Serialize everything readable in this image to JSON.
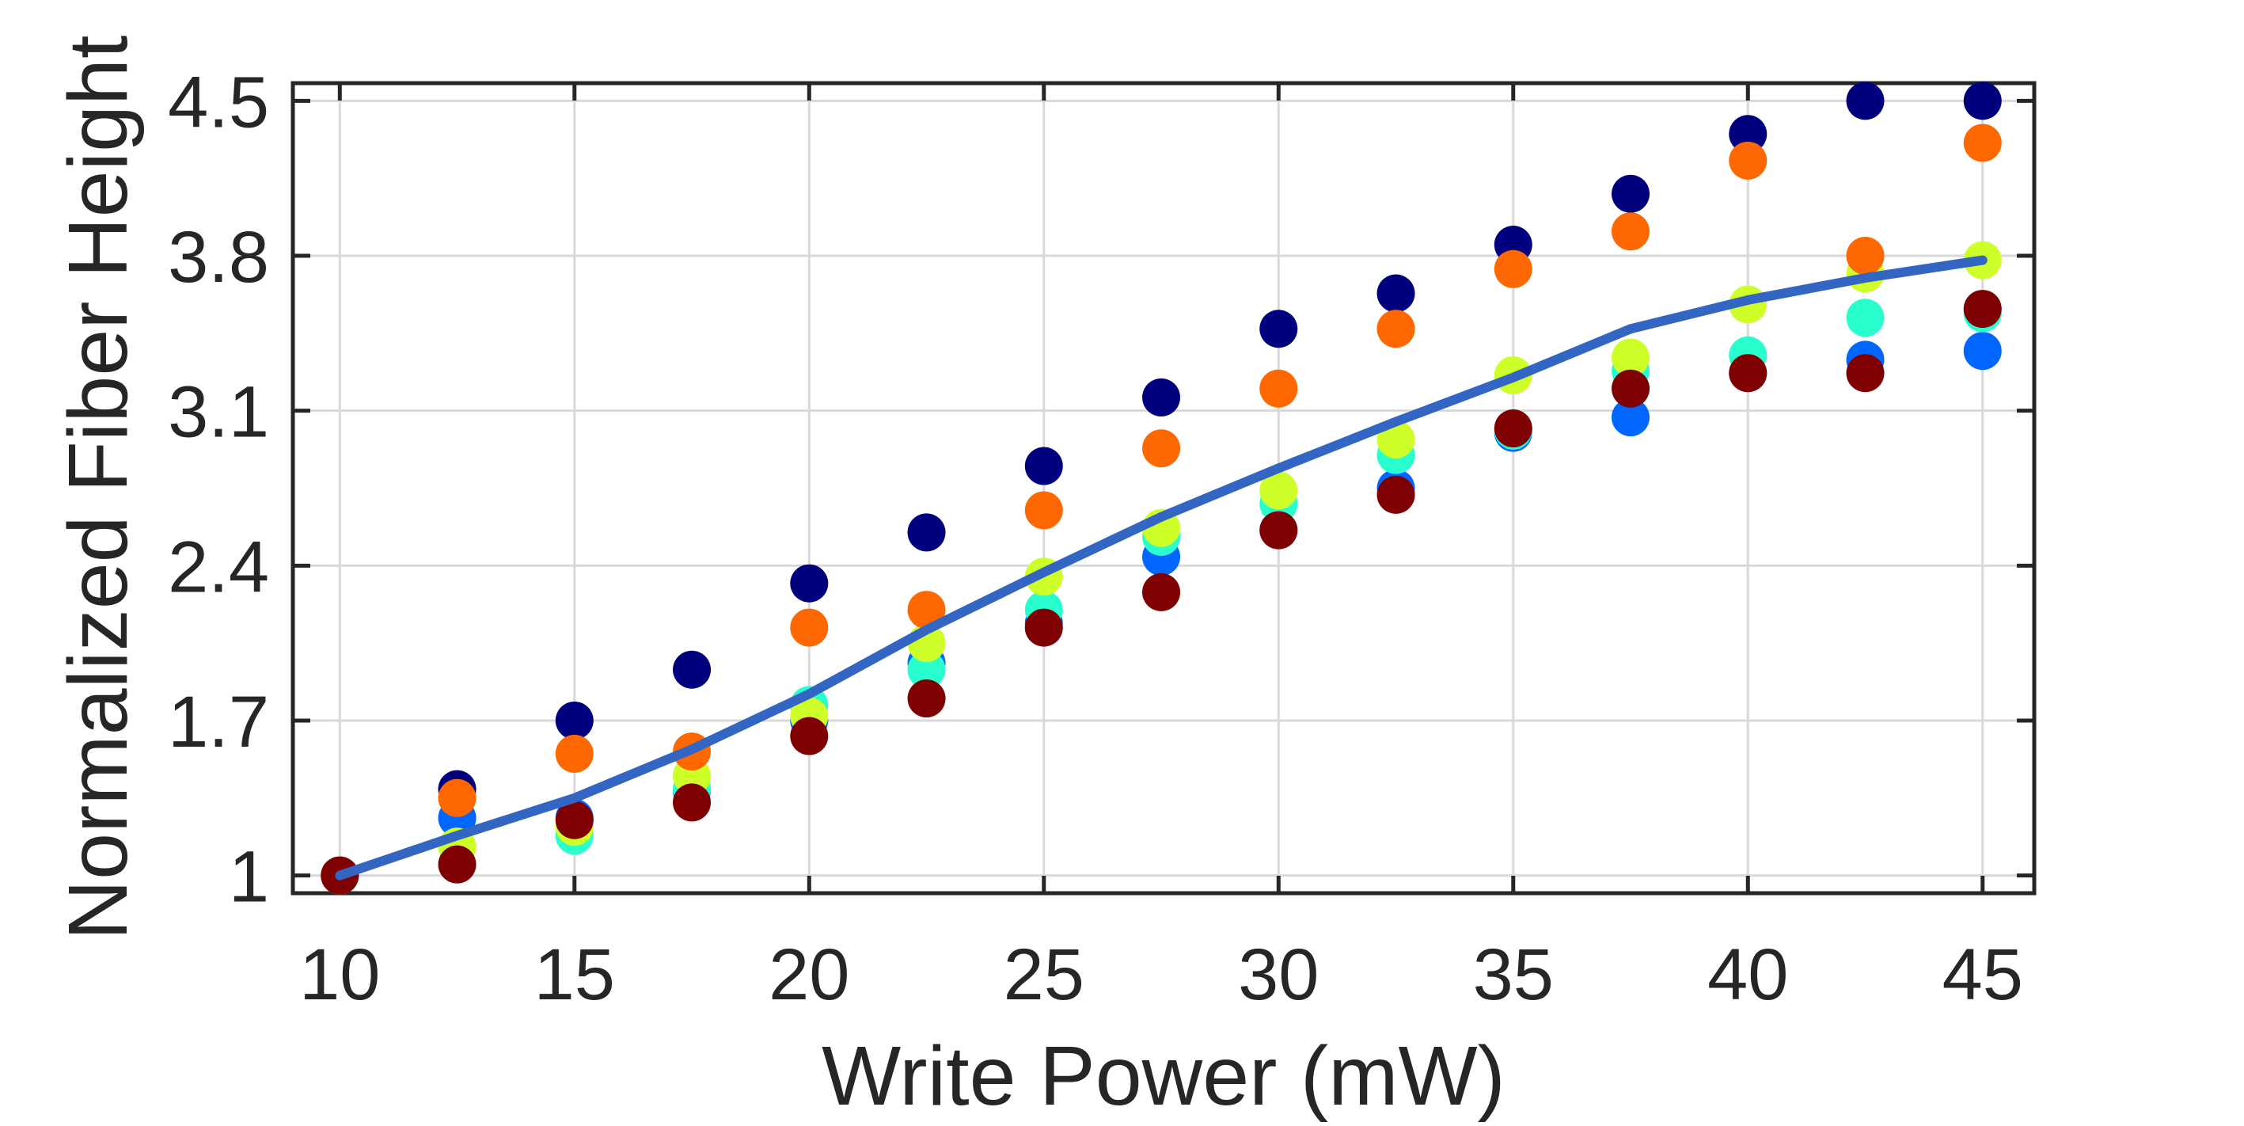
{
  "chart_data": {
    "type": "scatter",
    "xlabel": "Write Power (mW)",
    "ylabel": "Normalized Fiber Height",
    "xlim": [
      9,
      46.1
    ],
    "ylim": [
      0.92,
      4.58
    ],
    "xticks": [
      10,
      15,
      20,
      25,
      30,
      35,
      40,
      45
    ],
    "yticks": [
      1,
      1.7,
      2.4,
      3.1,
      3.8,
      4.5
    ],
    "xtick_labels": [
      "10",
      "15",
      "20",
      "25",
      "30",
      "35",
      "40",
      "45"
    ],
    "ytick_labels": [
      "1",
      "1.7",
      "2.4",
      "3.1",
      "3.8",
      "4.5"
    ],
    "grid": true,
    "x": [
      10,
      12.5,
      15,
      17.5,
      20,
      22.5,
      25,
      27.5,
      30,
      32.5,
      35,
      37.5,
      40,
      42.5,
      45
    ],
    "series": [
      {
        "color": "#00007f",
        "values": [
          1.0,
          1.39,
          1.7,
          1.93,
          2.32,
          2.55,
          2.85,
          3.16,
          3.47,
          3.63,
          3.85,
          4.08,
          4.35,
          4.5,
          4.5
        ]
      },
      {
        "color": "#0066ff",
        "values": [
          1.0,
          1.26,
          1.26,
          1.38,
          1.7,
          1.96,
          2.14,
          2.44,
          2.56,
          2.75,
          3.0,
          3.07,
          3.27,
          3.33,
          3.37
        ]
      },
      {
        "color": "#29ffce",
        "values": [
          1.0,
          1.13,
          1.18,
          1.39,
          1.77,
          1.93,
          2.2,
          2.53,
          2.68,
          2.9,
          3.01,
          3.28,
          3.35,
          3.52,
          3.54
        ]
      },
      {
        "color": "#ceff29",
        "values": [
          1.0,
          1.13,
          1.22,
          1.45,
          1.72,
          2.05,
          2.35,
          2.57,
          2.74,
          2.97,
          3.26,
          3.34,
          3.58,
          3.72,
          3.78
        ]
      },
      {
        "color": "#ff6800",
        "values": [
          1.0,
          1.35,
          1.55,
          1.56,
          2.12,
          2.2,
          2.65,
          2.93,
          3.2,
          3.47,
          3.74,
          3.91,
          4.23,
          3.8,
          4.31
        ]
      },
      {
        "color": "#7f0000",
        "values": [
          1.0,
          1.05,
          1.25,
          1.33,
          1.63,
          1.8,
          2.12,
          2.28,
          2.56,
          2.72,
          3.02,
          3.2,
          3.27,
          3.27,
          3.56
        ]
      }
    ],
    "mean_line": {
      "color": "#3365c2",
      "values": [
        1.0,
        1.18,
        1.35,
        1.57,
        1.82,
        2.11,
        2.37,
        2.62,
        2.84,
        3.05,
        3.25,
        3.47,
        3.6,
        3.7,
        3.78
      ]
    }
  }
}
